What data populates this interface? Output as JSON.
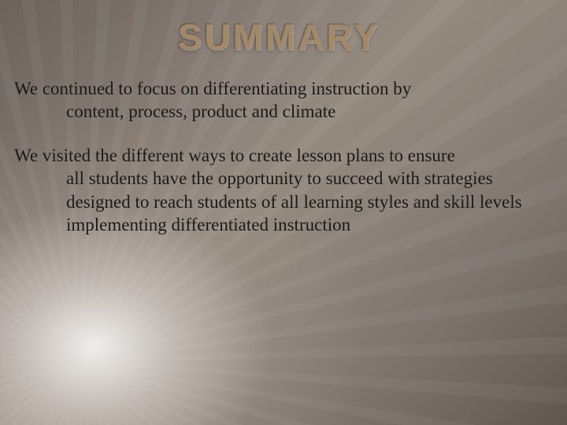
{
  "title": "SUMMARY",
  "paragraphs": [
    {
      "first": "We continued to focus on differentiating instruction by",
      "cont": "content, process, product and climate"
    },
    {
      "first": "We visited the different ways to create lesson plans to ensure",
      "cont": "all students have the opportunity to succeed with strategies designed to reach students of all learning styles and skill levels implementing differentiated instruction"
    }
  ],
  "style": {
    "title_color": "#a08868",
    "title_fontsize": 46,
    "body_color": "#1a1a1a",
    "body_fontsize": 23,
    "background_gradient": [
      "#6b625c",
      "#958a80",
      "#5f564f"
    ],
    "light_origin": "bottom-left",
    "font_family_title": "Arial Narrow",
    "font_family_body": "Georgia"
  }
}
